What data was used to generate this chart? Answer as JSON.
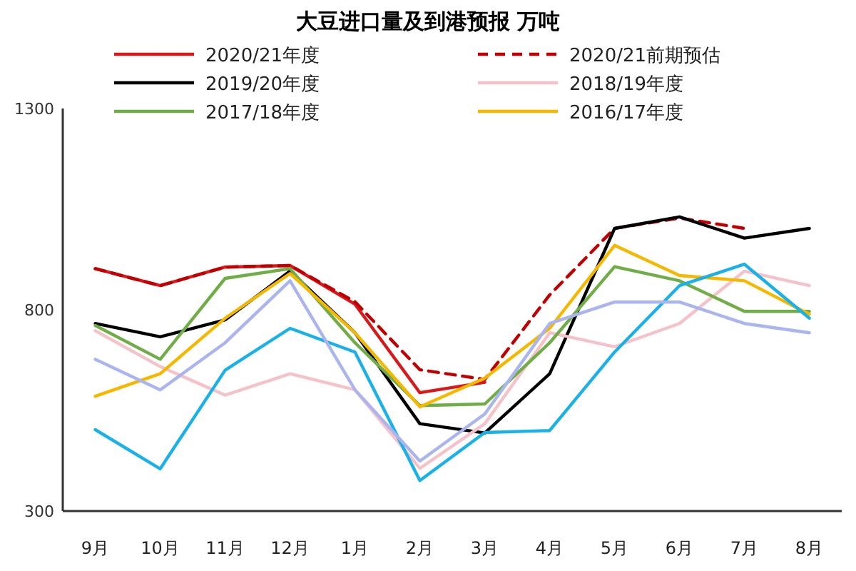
{
  "chart_data": {
    "type": "line",
    "title": "大豆进口量及到港预报  万吨",
    "categories": [
      "9月",
      "10月",
      "11月",
      "12月",
      "1月",
      "2月",
      "3月",
      "4月",
      "5月",
      "6月",
      "7月",
      "8月"
    ],
    "ylim": [
      300,
      1300
    ],
    "yticks": [
      300,
      800,
      1300
    ],
    "grid": false,
    "legend": "top",
    "marker": "none",
    "series": [
      {
        "name": "2020/21年度",
        "color": "#d7191c",
        "values": [
          902,
          860,
          906,
          910,
          814,
          594,
          620,
          null,
          null,
          null,
          null,
          null
        ]
      },
      {
        "name": "2020/21前期预估",
        "color": "#c00000",
        "line_style": "dashed",
        "values": [
          902,
          860,
          906,
          910,
          820,
          651,
          627,
          837,
          1002,
          1028,
          1002,
          null
        ]
      },
      {
        "name": "2019/20年度",
        "color": "#000000",
        "values": [
          766,
          733,
          775,
          896,
          743,
          517,
          494,
          641,
          1002,
          1031,
          978,
          1002
        ]
      },
      {
        "name": "2018/19年度",
        "color": "#f4c2c8",
        "values": [
          748,
          659,
          588,
          641,
          601,
          406,
          517,
          743,
          708,
          766,
          896,
          860
        ]
      },
      {
        "name": "2017/18年度",
        "color": "#70ad47",
        "values": [
          761,
          677,
          878,
          902,
          718,
          562,
          566,
          718,
          907,
          872,
          796,
          796
        ]
      },
      {
        "name": "2016/17年度",
        "color": "#f5b800",
        "values": [
          585,
          641,
          779,
          890,
          743,
          559,
          630,
          754,
          960,
          885,
          872,
          789
        ]
      },
      {
        "color": "#1ab0e8",
        "values": [
          502,
          405,
          650,
          754,
          695,
          376,
          495,
          500,
          695,
          860,
          913,
          779
        ]
      },
      {
        "color": "#aab4ee",
        "values": [
          677,
          601,
          718,
          872,
          601,
          424,
          541,
          766,
          819,
          819,
          766,
          743
        ]
      }
    ]
  }
}
